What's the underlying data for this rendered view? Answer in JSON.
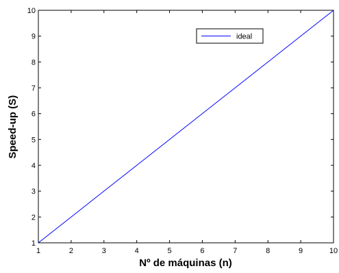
{
  "chart_data": {
    "type": "line",
    "title": "",
    "xlabel": "Nº de máquinas (n)",
    "ylabel": "Speed-up (S)",
    "xlim": [
      1,
      10
    ],
    "ylim": [
      1,
      10
    ],
    "xticks": [
      "1",
      "2",
      "3",
      "4",
      "5",
      "6",
      "7",
      "8",
      "9",
      "10"
    ],
    "yticks": [
      "1",
      "2",
      "3",
      "4",
      "5",
      "6",
      "7",
      "8",
      "9",
      "10"
    ],
    "grid": false,
    "legend_position": "top-right",
    "series": [
      {
        "name": "ideal",
        "color": "#0000ff",
        "x": [
          1,
          2,
          3,
          4,
          5,
          6,
          7,
          8,
          9,
          10
        ],
        "y": [
          1,
          2,
          3,
          4,
          5,
          6,
          7,
          8,
          9,
          10
        ]
      }
    ]
  }
}
